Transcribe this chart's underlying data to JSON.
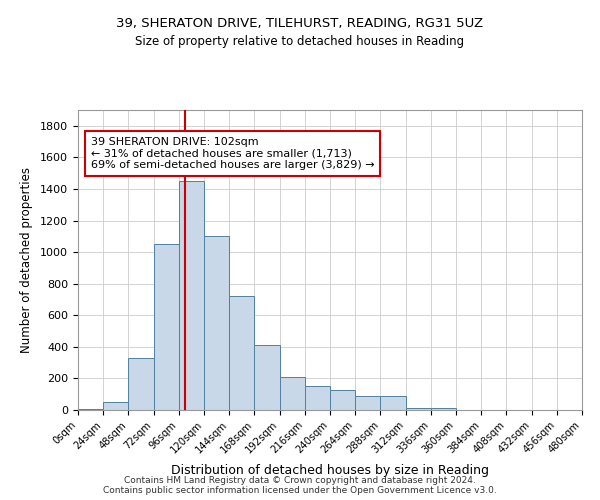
{
  "title_line1": "39, SHERATON DRIVE, TILEHURST, READING, RG31 5UZ",
  "title_line2": "Size of property relative to detached houses in Reading",
  "xlabel": "Distribution of detached houses by size in Reading",
  "ylabel": "Number of detached properties",
  "footer_line1": "Contains HM Land Registry data © Crown copyright and database right 2024.",
  "footer_line2": "Contains public sector information licensed under the Open Government Licence v3.0.",
  "bar_edges": [
    0,
    24,
    48,
    72,
    96,
    120,
    144,
    168,
    192,
    216,
    240,
    264,
    288,
    312,
    336,
    360,
    384,
    408,
    432,
    456,
    480
  ],
  "bar_heights": [
    5,
    50,
    330,
    1050,
    1450,
    1100,
    720,
    410,
    210,
    150,
    125,
    90,
    90,
    10,
    10,
    0,
    0,
    0,
    0,
    0
  ],
  "bar_color": "#c8d8e8",
  "bar_edge_color": "#5080a0",
  "property_size": 102,
  "vline_color": "#cc0000",
  "annotation_text": "39 SHERATON DRIVE: 102sqm\n← 31% of detached houses are smaller (1,713)\n69% of semi-detached houses are larger (3,829) →",
  "annotation_box_color": "#ffffff",
  "annotation_box_edge": "#cc0000",
  "ylim": [
    0,
    1900
  ],
  "yticks": [
    0,
    200,
    400,
    600,
    800,
    1000,
    1200,
    1400,
    1600,
    1800
  ],
  "background_color": "#ffffff",
  "grid_color": "#cccccc",
  "fig_width": 6.0,
  "fig_height": 5.0,
  "dpi": 100
}
